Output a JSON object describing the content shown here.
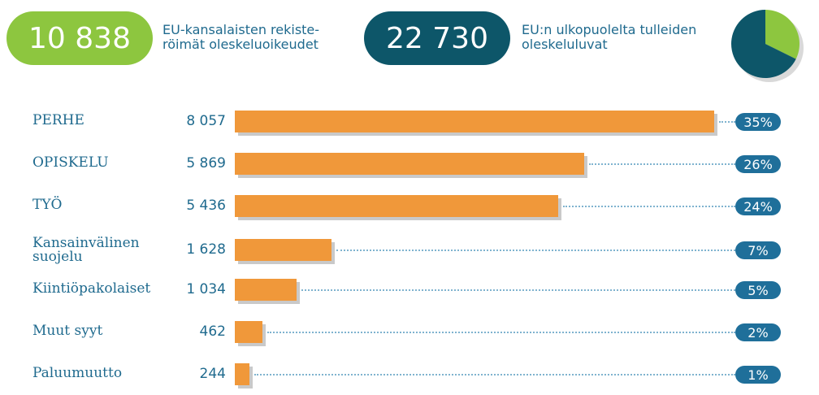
{
  "chart_data": {
    "type": "bar",
    "summary": [
      {
        "value": 10838,
        "label": "10 838",
        "text": [
          "EU-kansalaisten rekiste-",
          "röimät oleskeluoikeudet"
        ],
        "color": "#8dc63f"
      },
      {
        "value": 22730,
        "label": "22 730",
        "text": [
          "EU:n ulkopuolelta tulleiden",
          "oleskeluluvat"
        ],
        "color": "#0d5669"
      }
    ],
    "categories": [
      "PERHE",
      "OPISKELU",
      "TYÖ",
      "Kansainvälinen suojelu",
      "Kiintiöpakolaiset",
      "Muut syyt",
      "Paluumuutto"
    ],
    "values": [
      8057,
      5869,
      5436,
      1628,
      1034,
      462,
      244
    ],
    "value_labels": [
      "8 057",
      "5 869",
      "5 436",
      "1 628",
      "1 034",
      "462",
      "244"
    ],
    "shares": [
      35,
      26,
      24,
      7,
      5,
      2,
      1
    ],
    "share_labels": [
      "35%",
      "26%",
      "24%",
      "7%",
      "5%",
      "2%",
      "1%"
    ],
    "color": "#f0983a"
  }
}
